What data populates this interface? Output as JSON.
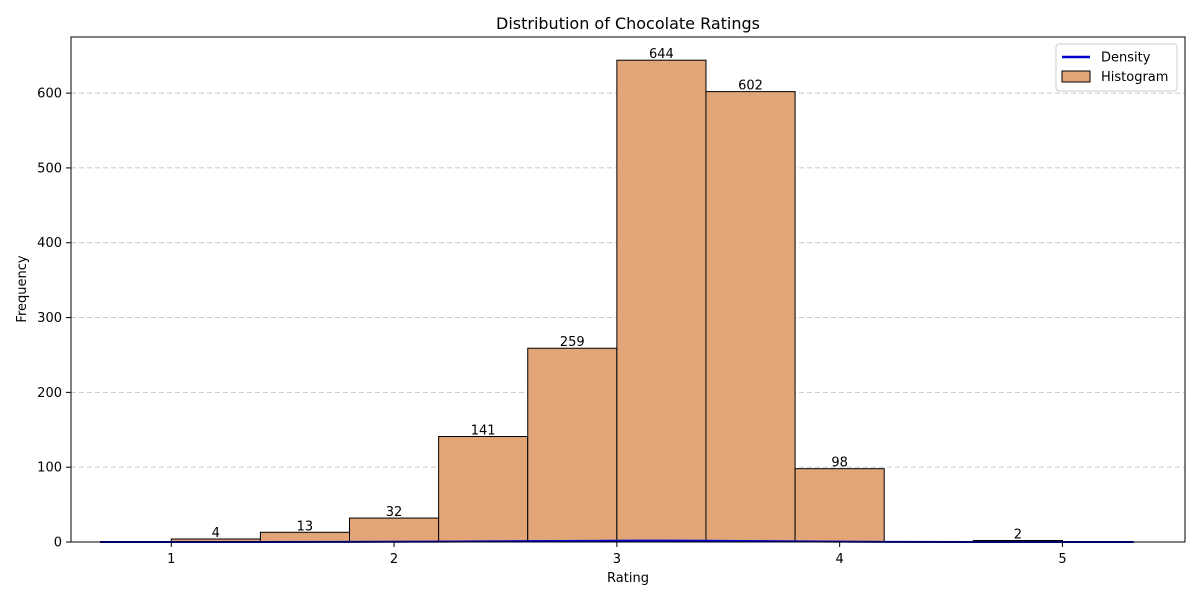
{
  "chart_data": {
    "type": "bar",
    "title": "Distribution of Chocolate Ratings",
    "xlabel": "Rating",
    "ylabel": "Frequency",
    "xlim": [
      0.55,
      5.55
    ],
    "ylim": [
      0,
      675
    ],
    "xticks": [
      1,
      2,
      3,
      4,
      5
    ],
    "yticks": [
      0,
      100,
      200,
      300,
      400,
      500,
      600
    ],
    "grid": "y-dashed",
    "legend_position": "top-right",
    "bins": [
      {
        "x0": 1.0,
        "x1": 1.4,
        "value": 4
      },
      {
        "x0": 1.4,
        "x1": 1.8,
        "value": 13
      },
      {
        "x0": 1.8,
        "x1": 2.2,
        "value": 32
      },
      {
        "x0": 2.2,
        "x1": 2.6,
        "value": 141
      },
      {
        "x0": 2.6,
        "x1": 3.0,
        "value": 259
      },
      {
        "x0": 3.0,
        "x1": 3.4,
        "value": 644
      },
      {
        "x0": 3.4,
        "x1": 3.8,
        "value": 602
      },
      {
        "x0": 3.8,
        "x1": 4.2,
        "value": 98
      },
      {
        "x0": 4.2,
        "x1": 4.6,
        "value": 0
      },
      {
        "x0": 4.6,
        "x1": 5.0,
        "value": 2
      }
    ],
    "series": [
      {
        "name": "Density",
        "type": "line",
        "color": "#0000cc",
        "x": [
          0.68,
          1.0,
          1.4,
          1.8,
          2.2,
          2.6,
          3.0,
          3.2,
          3.4,
          3.8,
          4.2,
          4.6,
          5.0,
          5.32
        ],
        "y": [
          0.0,
          0.01,
          0.05,
          0.15,
          0.45,
          1.1,
          1.7,
          1.85,
          1.75,
          0.9,
          0.2,
          0.03,
          0.01,
          0.0
        ]
      },
      {
        "name": "Histogram",
        "type": "bar",
        "color": "#e2a577",
        "edgecolor": "#000000"
      }
    ]
  }
}
